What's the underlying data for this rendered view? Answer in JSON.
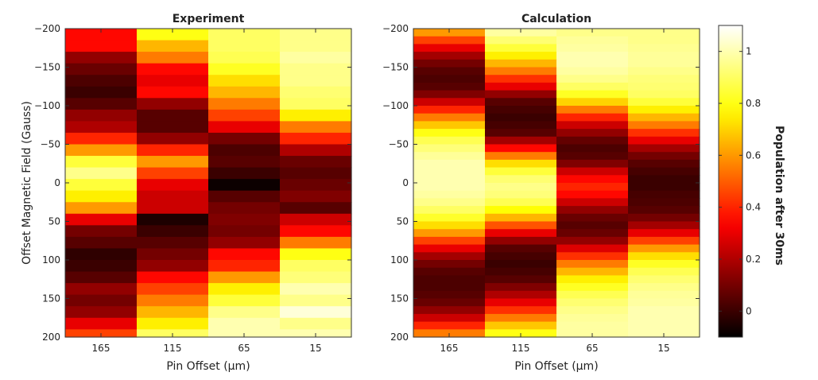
{
  "chart_data": [
    {
      "type": "heatmap",
      "title": "Experiment",
      "xlabel": "Pin Offset (μm)",
      "ylabel": "Offset Magnetic Field (Gauss)",
      "x_categories": [
        "165",
        "115",
        "65",
        "15"
      ],
      "ylim": [
        -200,
        200
      ],
      "y_reversed": true,
      "y_ticks": [
        -200,
        -150,
        -100,
        -50,
        0,
        50,
        100,
        150,
        200
      ],
      "y_tick_labels": [
        "−200",
        "−150",
        "−100",
        "−50",
        "0",
        "50",
        "100",
        "150",
        "200"
      ],
      "y_bin_edges": [
        -200,
        -185,
        -170,
        -155,
        -140,
        -125,
        -110,
        -95,
        -80,
        -65,
        -50,
        -35,
        -20,
        -5,
        10,
        25,
        40,
        55,
        70,
        85,
        100,
        115,
        130,
        145,
        160,
        175,
        190,
        200
      ],
      "values": [
        [
          0.35,
          0.8,
          0.9,
          0.95
        ],
        [
          0.35,
          0.65,
          0.9,
          0.95
        ],
        [
          0.15,
          0.55,
          0.88,
          0.98
        ],
        [
          0.08,
          0.35,
          0.82,
          0.95
        ],
        [
          0.03,
          0.3,
          0.72,
          0.95
        ],
        [
          0.0,
          0.35,
          0.65,
          0.92
        ],
        [
          0.05,
          0.15,
          0.55,
          0.9
        ],
        [
          0.15,
          0.05,
          0.45,
          0.75
        ],
        [
          0.2,
          0.05,
          0.3,
          0.55
        ],
        [
          0.4,
          0.15,
          0.1,
          0.4
        ],
        [
          0.6,
          0.4,
          0.03,
          0.2
        ],
        [
          0.85,
          0.6,
          0.05,
          0.08
        ],
        [
          0.95,
          0.45,
          0.0,
          0.05
        ],
        [
          0.85,
          0.3,
          -0.08,
          0.08
        ],
        [
          0.75,
          0.25,
          0.05,
          0.12
        ],
        [
          0.6,
          0.25,
          0.1,
          0.05
        ],
        [
          0.3,
          -0.05,
          0.12,
          0.25
        ],
        [
          0.1,
          0.0,
          0.1,
          0.35
        ],
        [
          0.05,
          0.05,
          0.15,
          0.55
        ],
        [
          -0.02,
          0.1,
          0.35,
          0.8
        ],
        [
          0.0,
          0.15,
          0.4,
          0.9
        ],
        [
          0.05,
          0.35,
          0.6,
          0.93
        ],
        [
          0.15,
          0.45,
          0.75,
          1.0
        ],
        [
          0.1,
          0.55,
          0.85,
          0.95
        ],
        [
          0.15,
          0.65,
          0.95,
          1.05
        ],
        [
          0.3,
          0.75,
          1.0,
          0.95
        ],
        [
          0.45,
          0.9,
          1.0,
          1.0
        ]
      ]
    },
    {
      "type": "heatmap",
      "title": "Calculation",
      "xlabel": "Pin Offset (μm)",
      "ylabel": "",
      "x_categories": [
        "165",
        "115",
        "65",
        "15"
      ],
      "ylim": [
        -200,
        200
      ],
      "y_reversed": true,
      "y_ticks": [
        -200,
        -150,
        -100,
        -50,
        0,
        50,
        100,
        150,
        200
      ],
      "y_tick_labels": [
        "−200",
        "−150",
        "−100",
        "−50",
        "0",
        "50",
        "100",
        "150",
        "200"
      ],
      "y_bin_edges": [
        -200,
        -190,
        -180,
        -170,
        -160,
        -150,
        -140,
        -130,
        -120,
        -110,
        -100,
        -90,
        -80,
        -70,
        -60,
        -50,
        -40,
        -30,
        -20,
        -10,
        0,
        10,
        20,
        30,
        40,
        50,
        60,
        70,
        80,
        90,
        100,
        110,
        120,
        130,
        140,
        150,
        160,
        170,
        180,
        190,
        200
      ],
      "values": [
        [
          0.6,
          0.98,
          0.95,
          0.95
        ],
        [
          0.45,
          0.92,
          0.97,
          0.95
        ],
        [
          0.3,
          0.85,
          0.98,
          0.96
        ],
        [
          0.18,
          0.75,
          1.0,
          0.97
        ],
        [
          0.1,
          0.65,
          1.0,
          0.97
        ],
        [
          0.05,
          0.55,
          0.98,
          0.95
        ],
        [
          0.03,
          0.42,
          0.95,
          0.93
        ],
        [
          0.05,
          0.3,
          0.9,
          0.92
        ],
        [
          0.12,
          0.15,
          0.82,
          0.9
        ],
        [
          0.25,
          0.05,
          0.7,
          0.85
        ],
        [
          0.4,
          0.02,
          0.55,
          0.75
        ],
        [
          0.55,
          0.0,
          0.4,
          0.65
        ],
        [
          0.68,
          0.02,
          0.25,
          0.55
        ],
        [
          0.8,
          0.05,
          0.15,
          0.42
        ],
        [
          0.88,
          0.18,
          0.07,
          0.3
        ],
        [
          0.93,
          0.35,
          0.03,
          0.18
        ],
        [
          0.97,
          0.55,
          0.05,
          0.1
        ],
        [
          1.0,
          0.72,
          0.12,
          0.05
        ],
        [
          1.0,
          0.85,
          0.25,
          0.02
        ],
        [
          1.0,
          0.92,
          0.35,
          0.0
        ],
        [
          1.0,
          0.95,
          0.4,
          0.0
        ],
        [
          0.98,
          0.93,
          0.35,
          0.02
        ],
        [
          0.95,
          0.88,
          0.25,
          0.03
        ],
        [
          0.9,
          0.78,
          0.15,
          0.05
        ],
        [
          0.83,
          0.65,
          0.08,
          0.1
        ],
        [
          0.72,
          0.48,
          0.05,
          0.18
        ],
        [
          0.6,
          0.3,
          0.08,
          0.3
        ],
        [
          0.45,
          0.15,
          0.15,
          0.45
        ],
        [
          0.3,
          0.05,
          0.28,
          0.6
        ],
        [
          0.18,
          0.02,
          0.42,
          0.72
        ],
        [
          0.1,
          0.0,
          0.55,
          0.82
        ],
        [
          0.05,
          0.02,
          0.65,
          0.88
        ],
        [
          0.03,
          0.05,
          0.75,
          0.92
        ],
        [
          0.03,
          0.12,
          0.82,
          0.95
        ],
        [
          0.05,
          0.2,
          0.88,
          0.97
        ],
        [
          0.08,
          0.3,
          0.92,
          0.98
        ],
        [
          0.15,
          0.42,
          0.95,
          1.0
        ],
        [
          0.25,
          0.55,
          0.97,
          1.0
        ],
        [
          0.4,
          0.68,
          0.98,
          1.0
        ],
        [
          0.55,
          0.8,
          0.98,
          1.0
        ]
      ]
    }
  ],
  "colorbar": {
    "label": "Population after 30ms",
    "range": [
      -0.1,
      1.1
    ],
    "ticks": [
      0,
      0.2,
      0.4,
      0.6,
      0.8,
      1
    ],
    "tick_labels": [
      "0",
      "0.2",
      "0.4",
      "0.6",
      "0.8",
      "1"
    ],
    "colormap": "hot"
  }
}
